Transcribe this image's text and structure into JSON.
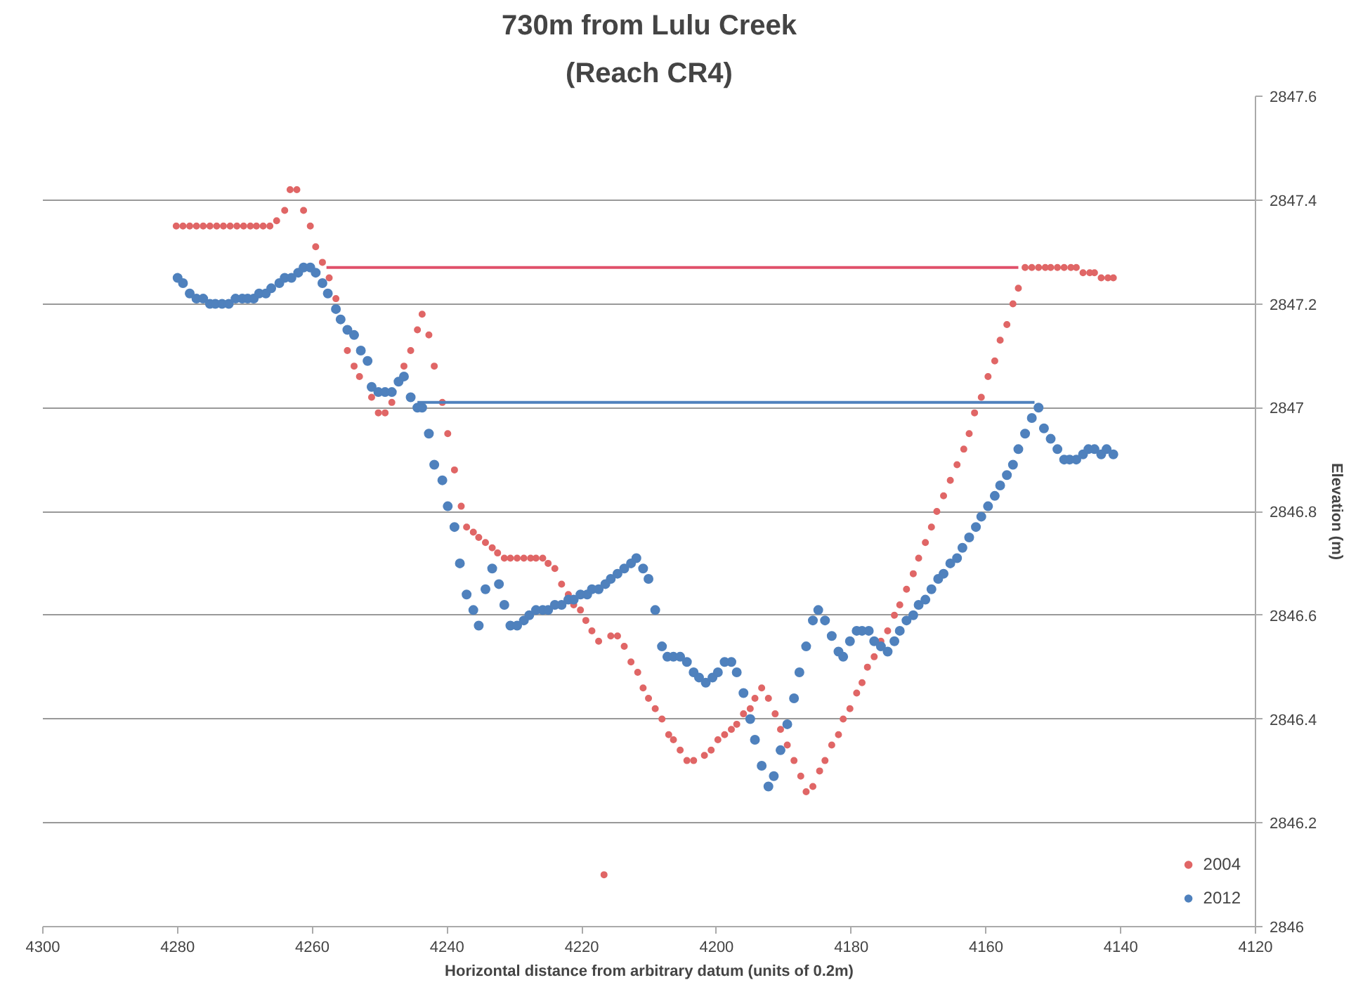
{
  "chart_data": {
    "type": "scatter",
    "title": "730m from Lulu Creek",
    "subtitle": "(Reach CR4)",
    "xlabel": "Horizontal distance from arbitrary datum (units of 0.2m)",
    "ylabel": "Elevation (m)",
    "xlim": [
      4300,
      4120
    ],
    "xticks": [
      4300,
      4280,
      4260,
      4240,
      4220,
      4200,
      4180,
      4160,
      4140,
      4120
    ],
    "ylim": [
      2846,
      2847.6
    ],
    "yticks": [
      2846,
      2846.2,
      2846.4,
      2846.6,
      2846.8,
      2847,
      2847.2,
      2847.4,
      2847.6
    ],
    "grid": "y",
    "legend": "bottom right",
    "marker": "circle",
    "series": [
      {
        "name": "2004",
        "color": "#e06666",
        "x": [
          4280.2,
          4279.2,
          4278.2,
          4277.2,
          4276.2,
          4275.2,
          4274.2,
          4273.2,
          4272.2,
          4271.2,
          4270.2,
          4269.2,
          4268.3,
          4267.3,
          4266.3,
          4265.3,
          4264.1,
          4263.3,
          4262.3,
          4261.3,
          4260.3,
          4259.5,
          4258.5,
          4257.5,
          4256.5,
          4254.8,
          4253.8,
          4253.0,
          4251.2,
          4250.2,
          4249.2,
          4248.2,
          4246.4,
          4245.4,
          4244.4,
          4243.7,
          4242.7,
          4241.9,
          4240.7,
          4239.9,
          4238.9,
          4237.9,
          4237.1,
          4236.1,
          4235.3,
          4234.3,
          4233.3,
          4232.5,
          4231.5,
          4230.6,
          4229.6,
          4228.6,
          4227.6,
          4226.8,
          4225.8,
          4225.0,
          4224.0,
          4223.0,
          4222.0,
          4221.2,
          4220.2,
          4219.4,
          4218.5,
          4217.5,
          4215.7,
          4214.7,
          4213.7,
          4212.7,
          4211.7,
          4210.9,
          4210.1,
          4209.1,
          4208.1,
          4207.1,
          4206.4,
          4205.4,
          4204.4,
          4203.4,
          4201.8,
          4200.8,
          4199.8,
          4198.8,
          4197.8,
          4197.0,
          4196.0,
          4195.0,
          4194.3,
          4193.3,
          4192.3,
          4191.3,
          4190.5,
          4189.5,
          4188.5,
          4187.5,
          4186.7,
          4185.7,
          4184.7,
          4183.9,
          4182.9,
          4181.9,
          4181.2,
          4180.2,
          4179.2,
          4178.4,
          4177.6,
          4176.6,
          4175.6,
          4174.6,
          4173.6,
          4172.8,
          4171.8,
          4170.8,
          4170.0,
          4169.0,
          4168.1,
          4167.3,
          4166.3,
          4165.3,
          4164.3,
          4163.3,
          4162.5,
          4161.7,
          4160.7,
          4159.7,
          4158.7,
          4157.9,
          4156.9,
          4156.0,
          4155.2,
          4154.2,
          4153.2,
          4152.2,
          4151.2,
          4150.4,
          4149.4,
          4148.4,
          4147.4,
          4146.6,
          4145.6,
          4144.6,
          4143.9,
          4142.9,
          4141.9,
          4141.1,
          4216.7
        ],
        "values": [
          2847.35,
          2847.35,
          2847.35,
          2847.35,
          2847.35,
          2847.35,
          2847.35,
          2847.35,
          2847.35,
          2847.35,
          2847.35,
          2847.35,
          2847.35,
          2847.35,
          2847.35,
          2847.36,
          2847.38,
          2847.42,
          2847.42,
          2847.38,
          2847.35,
          2847.31,
          2847.28,
          2847.25,
          2847.21,
          2847.11,
          2847.08,
          2847.06,
          2847.02,
          2846.99,
          2846.99,
          2847.01,
          2847.08,
          2847.11,
          2847.15,
          2847.18,
          2847.14,
          2847.08,
          2847.01,
          2846.95,
          2846.88,
          2846.81,
          2846.77,
          2846.76,
          2846.75,
          2846.74,
          2846.73,
          2846.72,
          2846.71,
          2846.71,
          2846.71,
          2846.71,
          2846.71,
          2846.71,
          2846.71,
          2846.7,
          2846.69,
          2846.66,
          2846.64,
          2846.62,
          2846.61,
          2846.59,
          2846.57,
          2846.55,
          2846.56,
          2846.56,
          2846.54,
          2846.51,
          2846.49,
          2846.46,
          2846.44,
          2846.42,
          2846.4,
          2846.37,
          2846.36,
          2846.34,
          2846.32,
          2846.32,
          2846.33,
          2846.34,
          2846.36,
          2846.37,
          2846.38,
          2846.39,
          2846.41,
          2846.42,
          2846.44,
          2846.46,
          2846.44,
          2846.41,
          2846.38,
          2846.35,
          2846.32,
          2846.29,
          2846.26,
          2846.27,
          2846.3,
          2846.32,
          2846.35,
          2846.37,
          2846.4,
          2846.42,
          2846.45,
          2846.47,
          2846.5,
          2846.52,
          2846.55,
          2846.57,
          2846.6,
          2846.62,
          2846.65,
          2846.68,
          2846.71,
          2846.74,
          2846.77,
          2846.8,
          2846.83,
          2846.86,
          2846.89,
          2846.92,
          2846.95,
          2846.99,
          2847.02,
          2847.06,
          2847.09,
          2847.13,
          2847.16,
          2847.2,
          2847.23,
          2847.27,
          2847.27,
          2847.27,
          2847.27,
          2847.27,
          2847.27,
          2847.27,
          2847.27,
          2847.27,
          2847.26,
          2847.26,
          2847.26,
          2847.25,
          2847.25,
          2847.25,
          2846.1
        ]
      },
      {
        "name": "2012",
        "color": "#4f81bd",
        "x": [
          4280.0,
          4279.2,
          4278.2,
          4277.2,
          4276.2,
          4275.2,
          4274.4,
          4273.4,
          4272.4,
          4271.4,
          4270.4,
          4269.6,
          4268.7,
          4267.9,
          4266.9,
          4266.1,
          4264.9,
          4264.1,
          4263.1,
          4262.1,
          4261.3,
          4260.3,
          4259.5,
          4258.5,
          4257.7,
          4256.5,
          4255.8,
          4254.8,
          4253.8,
          4252.8,
          4251.8,
          4251.2,
          4250.2,
          4249.2,
          4248.2,
          4247.2,
          4246.4,
          4245.4,
          4244.4,
          4243.7,
          4242.7,
          4241.9,
          4240.7,
          4239.9,
          4238.9,
          4238.1,
          4237.1,
          4236.1,
          4235.3,
          4234.3,
          4233.3,
          4232.3,
          4231.5,
          4230.6,
          4229.6,
          4228.6,
          4227.8,
          4226.8,
          4225.8,
          4225.0,
          4224.0,
          4223.0,
          4222.0,
          4221.2,
          4220.2,
          4219.2,
          4218.5,
          4217.5,
          4216.5,
          4215.7,
          4214.7,
          4213.7,
          4212.7,
          4211.9,
          4210.9,
          4210.1,
          4209.1,
          4208.1,
          4207.3,
          4206.4,
          4205.4,
          4204.4,
          4203.4,
          4202.6,
          4201.6,
          4200.6,
          4199.8,
          4198.8,
          4197.8,
          4197.0,
          4196.0,
          4195.0,
          4194.3,
          4193.3,
          4192.3,
          4191.5,
          4190.5,
          4189.5,
          4188.5,
          4187.7,
          4186.7,
          4185.7,
          4184.9,
          4183.9,
          4182.9,
          4181.9,
          4181.2,
          4180.2,
          4179.2,
          4178.4,
          4177.4,
          4176.6,
          4175.6,
          4174.6,
          4173.6,
          4172.8,
          4171.8,
          4170.8,
          4170.0,
          4169.0,
          4168.1,
          4167.1,
          4166.3,
          4165.3,
          4164.3,
          4163.5,
          4162.5,
          4161.5,
          4160.7,
          4159.7,
          4158.7,
          4157.9,
          4156.9,
          4156.0,
          4155.2,
          4154.2,
          4153.2,
          4152.2,
          4151.4,
          4150.4,
          4149.4,
          4148.4,
          4147.6,
          4146.6,
          4145.6,
          4144.8,
          4143.9,
          4142.9,
          4142.1,
          4141.1
        ],
        "values": [
          2847.25,
          2847.24,
          2847.22,
          2847.21,
          2847.21,
          2847.2,
          2847.2,
          2847.2,
          2847.2,
          2847.21,
          2847.21,
          2847.21,
          2847.21,
          2847.22,
          2847.22,
          2847.23,
          2847.24,
          2847.25,
          2847.25,
          2847.26,
          2847.27,
          2847.27,
          2847.26,
          2847.24,
          2847.22,
          2847.19,
          2847.17,
          2847.15,
          2847.14,
          2847.11,
          2847.09,
          2847.04,
          2847.03,
          2847.03,
          2847.03,
          2847.05,
          2847.06,
          2847.02,
          2847.0,
          2847.0,
          2846.95,
          2846.89,
          2846.86,
          2846.81,
          2846.77,
          2846.7,
          2846.64,
          2846.61,
          2846.58,
          2846.65,
          2846.69,
          2846.66,
          2846.62,
          2846.58,
          2846.58,
          2846.59,
          2846.6,
          2846.61,
          2846.61,
          2846.61,
          2846.62,
          2846.62,
          2846.63,
          2846.63,
          2846.64,
          2846.64,
          2846.65,
          2846.65,
          2846.66,
          2846.67,
          2846.68,
          2846.69,
          2846.7,
          2846.71,
          2846.69,
          2846.67,
          2846.61,
          2846.54,
          2846.52,
          2846.52,
          2846.52,
          2846.51,
          2846.49,
          2846.48,
          2846.47,
          2846.48,
          2846.49,
          2846.51,
          2846.51,
          2846.49,
          2846.45,
          2846.4,
          2846.36,
          2846.31,
          2846.27,
          2846.29,
          2846.34,
          2846.39,
          2846.44,
          2846.49,
          2846.54,
          2846.59,
          2846.61,
          2846.59,
          2846.56,
          2846.53,
          2846.52,
          2846.55,
          2846.57,
          2846.57,
          2846.57,
          2846.55,
          2846.54,
          2846.53,
          2846.55,
          2846.57,
          2846.59,
          2846.6,
          2846.62,
          2846.63,
          2846.65,
          2846.67,
          2846.68,
          2846.7,
          2846.71,
          2846.73,
          2846.75,
          2846.77,
          2846.79,
          2846.81,
          2846.83,
          2846.85,
          2846.87,
          2846.89,
          2846.92,
          2846.95,
          2846.98,
          2847.0,
          2846.96,
          2846.94,
          2846.92,
          2846.9,
          2846.9,
          2846.9,
          2846.91,
          2846.92,
          2846.92,
          2846.91,
          2846.92,
          2846.91
        ]
      },
      {
        "type": "line",
        "marker": "none",
        "color": "#e0506a",
        "x": [
          4257.9,
          4155.2
        ],
        "values": [
          2847.27,
          2847.27
        ]
      },
      {
        "type": "line",
        "marker": "none",
        "color": "#4f81bd",
        "x": [
          4244.4,
          4152.8
        ],
        "values": [
          2847.01,
          2847.01
        ]
      }
    ]
  }
}
